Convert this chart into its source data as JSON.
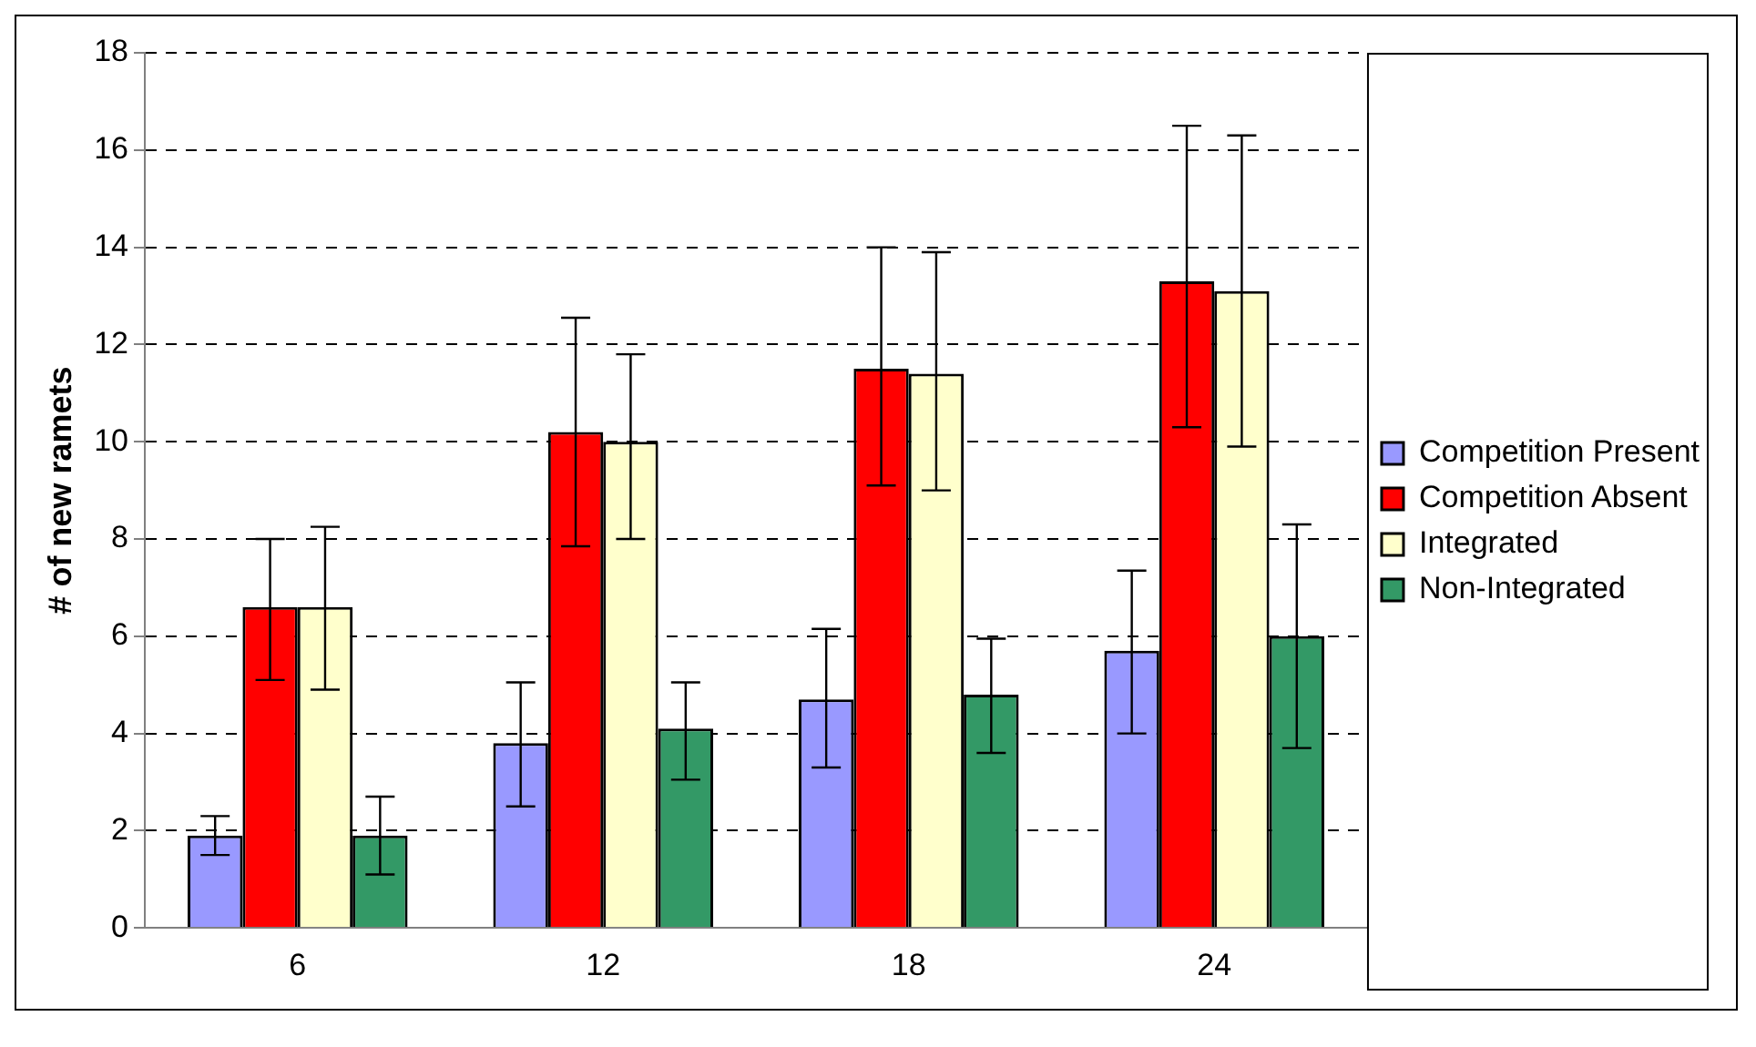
{
  "chart_data": {
    "type": "bar",
    "ylabel": "# of new ramets",
    "categories": [
      "6",
      "12",
      "18",
      "24"
    ],
    "series": [
      {
        "name": "Competition Present",
        "color": "#9999ff",
        "values": [
          1.9,
          3.8,
          4.7,
          5.7
        ],
        "errors": [
          [
            1.5,
            2.3
          ],
          [
            2.5,
            5.05
          ],
          [
            3.3,
            6.15
          ],
          [
            4.0,
            7.35
          ]
        ]
      },
      {
        "name": "Competition Absent",
        "color": "#ff0000",
        "values": [
          6.6,
          10.2,
          11.5,
          13.3
        ],
        "errors": [
          [
            5.1,
            8.0
          ],
          [
            7.85,
            12.55
          ],
          [
            9.1,
            14.0
          ],
          [
            10.3,
            16.5
          ]
        ]
      },
      {
        "name": "Integrated",
        "color": "#ffffcc",
        "values": [
          6.6,
          10.0,
          11.4,
          13.1
        ],
        "errors": [
          [
            4.9,
            8.25
          ],
          [
            8.0,
            11.8
          ],
          [
            9.0,
            13.9
          ],
          [
            9.9,
            16.3
          ]
        ]
      },
      {
        "name": "Non-Integrated",
        "color": "#339966",
        "values": [
          1.9,
          4.1,
          4.8,
          6.0
        ],
        "errors": [
          [
            1.1,
            2.7
          ],
          [
            3.05,
            5.05
          ],
          [
            3.6,
            5.95
          ],
          [
            3.7,
            8.3
          ]
        ]
      }
    ],
    "ylim": [
      0,
      18
    ],
    "yticks": [
      0,
      2,
      4,
      6,
      8,
      10,
      12,
      14,
      16,
      18
    ],
    "grid": "y",
    "legend": "right"
  }
}
